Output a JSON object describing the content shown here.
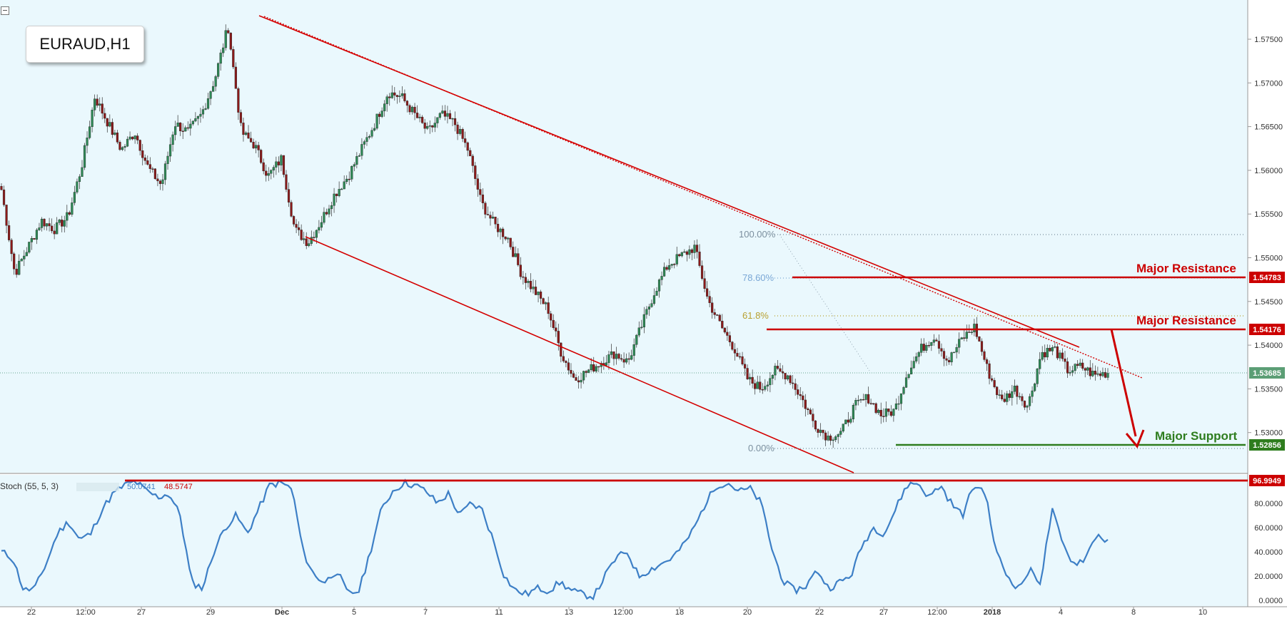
{
  "symbol": "EURAUD,H1",
  "colors": {
    "background": "#eaf8fd",
    "bull": "#2e8b57",
    "bear": "#8b1a1a",
    "trendline": "#d40000",
    "resistance": "#cc0000",
    "support": "#2e7d1e",
    "stoch": "#3d7fc6",
    "price_tag": "#5b9e75"
  },
  "chart_data": [
    {
      "type": "candlestick",
      "title": "EURAUD,H1",
      "ylim": [
        1.5255,
        1.5775
      ],
      "y_ticks": [
        "1.57500",
        "1.57000",
        "1.56500",
        "1.56000",
        "1.55500",
        "1.55000",
        "1.54500",
        "1.54000",
        "1.53500",
        "1.53000"
      ],
      "x_ticks": [
        "22",
        "12:00",
        "27",
        "29",
        "Dec",
        "5",
        "7",
        "11",
        "13",
        "12:00",
        "18",
        "20",
        "22",
        "27",
        "12:00",
        "2018",
        "4",
        "8",
        "10"
      ],
      "current_price": "1.53685",
      "horizontal_levels": [
        {
          "label": "Major Resistance",
          "price": "1.54783"
        },
        {
          "label": "Major Resistance",
          "price": "1.54176"
        },
        {
          "label": "Major Support",
          "price": "1.52856"
        }
      ],
      "fibonacci": [
        {
          "label": "100.00%",
          "price": 1.5527
        },
        {
          "label": "78.60%",
          "price": 1.5478
        },
        {
          "label": "61.8%",
          "price": 1.543
        },
        {
          "label": "0.00%",
          "price": 1.5282
        }
      ],
      "channel": {
        "upper": [
          {
            "x": "Dec 1",
            "y": 1.5774
          },
          {
            "x": "Jan 5",
            "y": 1.5367
          }
        ],
        "lower": [
          {
            "x": "Dec 2",
            "y": 1.5517
          },
          {
            "x": "Dec 27",
            "y": 1.525
          }
        ]
      },
      "forecast_arrow": {
        "from": 1.5418,
        "to": 1.5285
      },
      "prices": [
        1.5575,
        1.548,
        1.551,
        1.554,
        1.553,
        1.5545,
        1.56,
        1.568,
        1.565,
        1.562,
        1.564,
        1.56,
        1.558,
        1.565,
        1.564,
        1.566,
        1.57,
        1.576,
        1.564,
        1.5625,
        1.559,
        1.561,
        1.553,
        1.5515,
        1.554,
        1.557,
        1.559,
        1.562,
        1.565,
        1.5685,
        1.568,
        1.566,
        1.564,
        1.566,
        1.565,
        1.562,
        1.556,
        1.5535,
        1.552,
        1.548,
        1.546,
        1.544,
        1.539,
        1.536,
        1.537,
        1.538,
        1.539,
        1.538,
        1.542,
        1.546,
        1.549,
        1.55,
        1.551,
        1.545,
        1.542,
        1.5395,
        1.536,
        1.535,
        1.537,
        1.5365,
        1.534,
        1.531,
        1.5295,
        1.53,
        1.533,
        1.534,
        1.532,
        1.5325,
        1.537,
        1.5395,
        1.541,
        1.538,
        1.5405,
        1.542,
        1.537,
        1.5335,
        1.535,
        1.533,
        1.539,
        1.5395,
        1.537,
        1.5375,
        1.5365,
        1.5368
      ]
    },
    {
      "type": "line",
      "title": "Stoch (55, 5, 3)",
      "series": [
        {
          "name": "Stoch (55, 5, 3)",
          "values": [
            40,
            35,
            8,
            10,
            30,
            55,
            65,
            50,
            55,
            75,
            88,
            95,
            98,
            90,
            85,
            88,
            70,
            15,
            10,
            40,
            60,
            70,
            55,
            75,
            95,
            97,
            92,
            40,
            20,
            15,
            25,
            5,
            8,
            40,
            75,
            90,
            97,
            95,
            90,
            80,
            88,
            70,
            80,
            75,
            50,
            20,
            8,
            5,
            10,
            8,
            15,
            8,
            5,
            3,
            20,
            35,
            40,
            20,
            25,
            30,
            35,
            45,
            60,
            80,
            95,
            97,
            90,
            92,
            80,
            40,
            15,
            8,
            12,
            25,
            10,
            15,
            20,
            45,
            60,
            55,
            75,
            95,
            97,
            85,
            95,
            80,
            70,
            95,
            90,
            40,
            20,
            10,
            25,
            15,
            75,
            45,
            30,
            35,
            55,
            48
          ]
        }
      ],
      "ylim": [
        0,
        100
      ],
      "y_ticks": [
        "80.0000",
        "60.0000",
        "40.0000",
        "20.0000",
        "0.0000"
      ],
      "header_values": [
        "50.0741",
        "48.5747"
      ],
      "overbought_level": "96.9949"
    }
  ]
}
